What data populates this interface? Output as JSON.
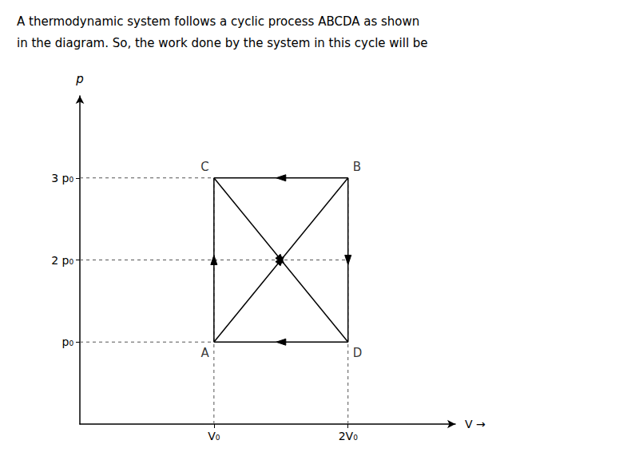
{
  "chart_data": {
    "type": "line",
    "title": "A thermodynamic system follows a cyclic process ABCDA as shown",
    "subtitle": "in the diagram. So, the work done by the system in this cycle will be",
    "xlabel": "V →",
    "ylabel": "p",
    "xlim": [
      0,
      2.8
    ],
    "ylim": [
      0,
      4.0
    ],
    "xticks": [
      {
        "value": 1,
        "label": "V₀"
      },
      {
        "value": 2,
        "label": "2V₀"
      }
    ],
    "yticks": [
      {
        "value": 1,
        "label": "p₀"
      },
      {
        "value": 2,
        "label": "2 p₀"
      },
      {
        "value": 3,
        "label": "3 p₀"
      }
    ],
    "grid": false,
    "series": [
      {
        "line_style": "solid",
        "marker": "arrow",
        "color": "#000000",
        "segments": [
          {
            "x": [
              2,
              1
            ],
            "values": [
              3,
              3
            ]
          },
          {
            "x": [
              2,
              1
            ],
            "values": [
              1,
              1
            ]
          },
          {
            "x": [
              1,
              1
            ],
            "values": [
              1,
              3
            ]
          },
          {
            "x": [
              2,
              2
            ],
            "values": [
              3,
              1
            ]
          },
          {
            "x": [
              1,
              2
            ],
            "values": [
              1,
              3
            ]
          },
          {
            "x": [
              1,
              2
            ],
            "values": [
              3,
              1
            ]
          }
        ]
      },
      {
        "line_style": "dashed",
        "marker": "none",
        "color": "#555555",
        "segments": [
          {
            "x": [
              0,
              1
            ],
            "values": [
              3,
              3
            ]
          },
          {
            "x": [
              0,
              2.0
            ],
            "values": [
              2.0,
              2.0
            ]
          },
          {
            "x": [
              0,
              1
            ],
            "values": [
              1,
              1
            ]
          },
          {
            "x": [
              1,
              1
            ],
            "values": [
              0,
              3
            ]
          },
          {
            "x": [
              2,
              2
            ],
            "values": [
              0,
              3
            ]
          }
        ]
      }
    ],
    "points": [
      {
        "label": "A",
        "x": 1,
        "y": 1
      },
      {
        "label": "B",
        "x": 2,
        "y": 3
      },
      {
        "label": "C",
        "x": 1,
        "y": 3
      },
      {
        "label": "D",
        "x": 2,
        "y": 1
      }
    ]
  }
}
